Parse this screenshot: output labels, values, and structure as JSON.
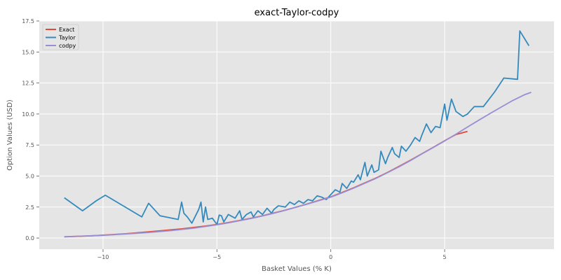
{
  "chart_data": {
    "type": "line",
    "title": "exact-Taylor-codpy",
    "xlabel": "Basket Values (% K)",
    "ylabel": "Option Values (USD)",
    "xlim": [
      -12.8,
      9.8
    ],
    "ylim": [
      -0.9,
      17.5
    ],
    "xticks": [
      -10,
      -5,
      0,
      5
    ],
    "xtick_labels": [
      "−10",
      "−5",
      "0",
      "5"
    ],
    "yticks": [
      0.0,
      2.5,
      5.0,
      7.5,
      10.0,
      12.5,
      15.0,
      17.5
    ],
    "ytick_labels": [
      "0.0",
      "2.5",
      "5.0",
      "7.5",
      "10.0",
      "12.5",
      "15.0",
      "17.5"
    ],
    "grid": true,
    "legend": "top-left",
    "colors": {
      "Exact": "#e24a33",
      "Taylor": "#348abd",
      "codpy": "#988ed5",
      "plot_bg": "#e5e5e5"
    },
    "series": [
      {
        "name": "Exact",
        "x": [
          -11.7,
          -10.5,
          -9.0,
          -7.5,
          -6.5,
          -5.5,
          -5.0,
          -4.5,
          -4.0,
          -3.5,
          -3.0,
          -2.5,
          -2.0,
          -1.5,
          -1.0,
          -0.5,
          0.0,
          0.5,
          1.0,
          1.5,
          2.0,
          2.5,
          3.0,
          3.5,
          4.0,
          4.5,
          5.0,
          5.5,
          6.0
        ],
        "y": [
          0.1,
          0.18,
          0.35,
          0.58,
          0.75,
          0.97,
          1.1,
          1.25,
          1.42,
          1.6,
          1.8,
          2.02,
          2.25,
          2.5,
          2.77,
          3.05,
          3.32,
          3.68,
          4.05,
          4.45,
          4.85,
          5.3,
          5.78,
          6.28,
          6.8,
          7.32,
          7.85,
          8.35,
          8.6
        ]
      },
      {
        "name": "Taylor",
        "x": [
          -11.7,
          -10.9,
          -10.3,
          -9.9,
          -8.3,
          -8.0,
          -7.5,
          -6.7,
          -6.55,
          -6.45,
          -6.3,
          -6.1,
          -5.8,
          -5.7,
          -5.6,
          -5.5,
          -5.4,
          -5.2,
          -5.0,
          -4.9,
          -4.8,
          -4.7,
          -4.5,
          -4.4,
          -4.2,
          -4.0,
          -3.9,
          -3.7,
          -3.5,
          -3.4,
          -3.2,
          -3.0,
          -2.8,
          -2.6,
          -2.5,
          -2.3,
          -2.0,
          -1.8,
          -1.6,
          -1.4,
          -1.2,
          -1.0,
          -0.8,
          -0.6,
          -0.4,
          -0.2,
          0.0,
          0.2,
          0.4,
          0.5,
          0.7,
          0.9,
          1.0,
          1.2,
          1.3,
          1.5,
          1.6,
          1.8,
          1.9,
          2.1,
          2.2,
          2.4,
          2.5,
          2.7,
          2.8,
          3.0,
          3.1,
          3.3,
          3.5,
          3.7,
          3.9,
          4.0,
          4.2,
          4.4,
          4.6,
          4.8,
          5.0,
          5.1,
          5.3,
          5.5,
          5.8,
          6.0,
          6.3,
          6.7,
          7.2,
          7.6,
          8.2,
          8.3,
          8.7
        ],
        "y": [
          3.25,
          2.2,
          3.0,
          3.45,
          1.7,
          2.8,
          1.8,
          1.5,
          2.9,
          2.0,
          1.7,
          1.2,
          2.3,
          2.9,
          1.3,
          2.5,
          1.5,
          1.6,
          1.1,
          1.85,
          1.8,
          1.3,
          1.9,
          1.8,
          1.6,
          2.2,
          1.5,
          1.9,
          2.1,
          1.7,
          2.2,
          1.9,
          2.4,
          2.0,
          2.3,
          2.6,
          2.5,
          2.9,
          2.7,
          3.0,
          2.8,
          3.1,
          3.0,
          3.4,
          3.3,
          3.1,
          3.5,
          3.9,
          3.7,
          4.4,
          4.0,
          4.6,
          4.5,
          5.1,
          4.7,
          6.1,
          5.0,
          5.9,
          5.3,
          5.5,
          7.0,
          6.0,
          6.5,
          7.3,
          6.8,
          6.5,
          7.4,
          7.0,
          7.5,
          8.1,
          7.8,
          8.3,
          9.2,
          8.5,
          9.0,
          8.9,
          10.8,
          9.5,
          11.2,
          10.2,
          9.8,
          10.0,
          10.6,
          10.6,
          11.8,
          12.9,
          12.8,
          16.7,
          15.5
        ]
      },
      {
        "name": "codpy",
        "x": [
          -11.7,
          -11.0,
          -10.0,
          -9.0,
          -8.0,
          -7.0,
          -6.0,
          -5.0,
          -4.5,
          -4.0,
          -3.5,
          -3.0,
          -2.5,
          -2.0,
          -1.5,
          -1.0,
          -0.5,
          0.0,
          0.5,
          1.0,
          1.5,
          2.0,
          2.5,
          3.0,
          3.5,
          4.0,
          4.5,
          5.0,
          5.5,
          6.0,
          6.5,
          7.0,
          7.5,
          8.0,
          8.5,
          8.8
        ],
        "y": [
          0.1,
          0.15,
          0.22,
          0.33,
          0.45,
          0.6,
          0.8,
          1.07,
          1.22,
          1.4,
          1.58,
          1.78,
          2.0,
          2.24,
          2.5,
          2.75,
          3.03,
          3.3,
          3.65,
          4.02,
          4.42,
          4.83,
          5.28,
          5.75,
          6.25,
          6.78,
          7.3,
          7.83,
          8.38,
          8.95,
          9.5,
          10.05,
          10.58,
          11.1,
          11.55,
          11.75
        ]
      }
    ]
  }
}
